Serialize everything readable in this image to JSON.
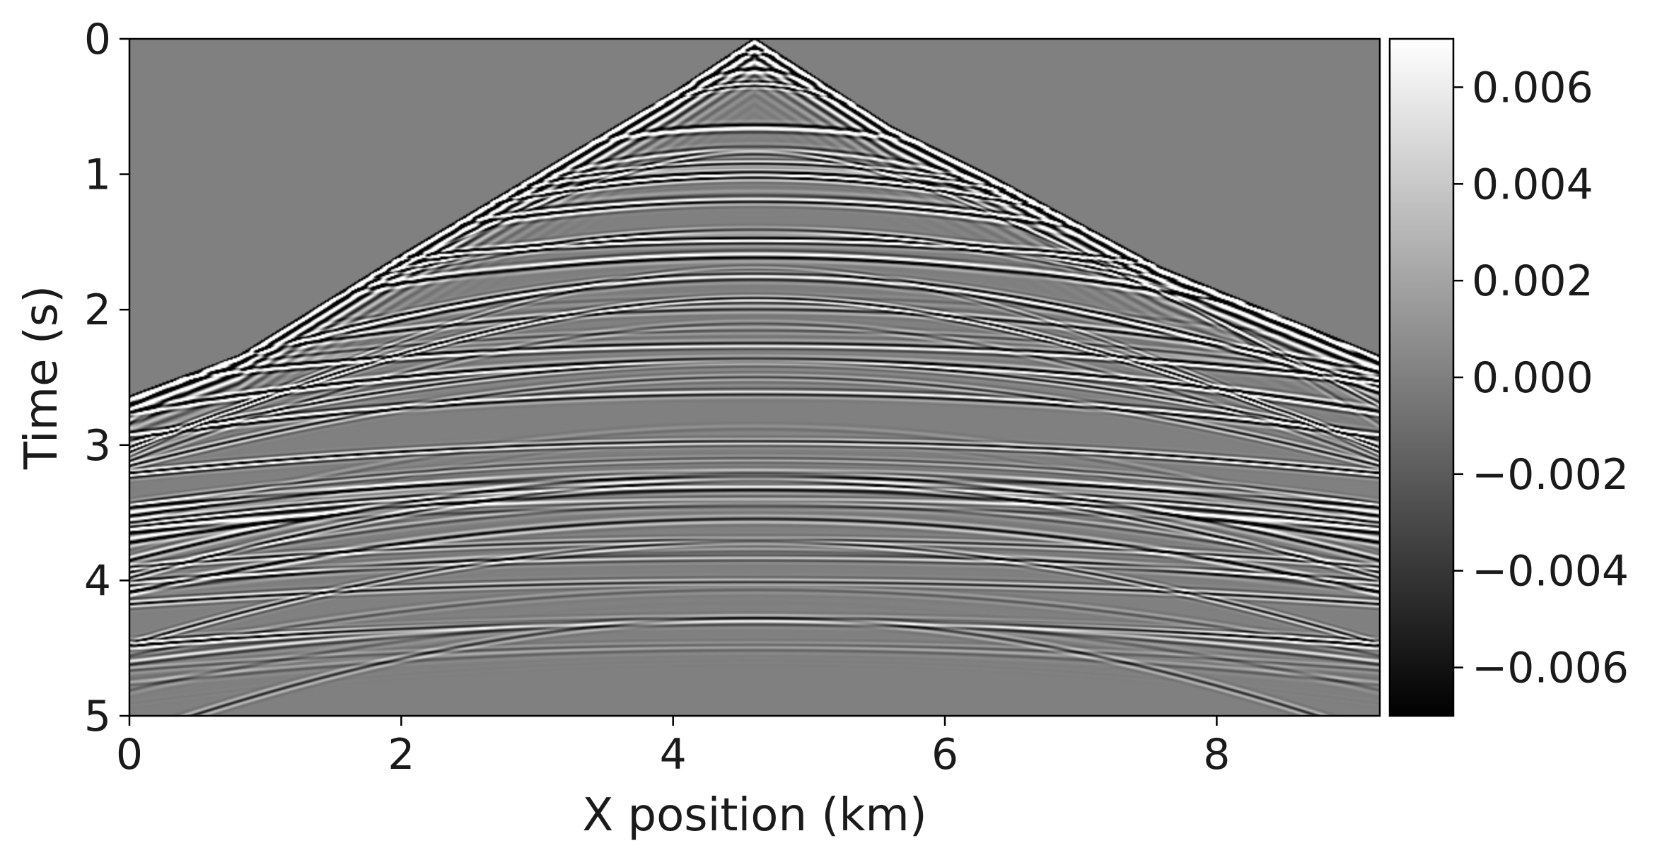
{
  "chart_data": {
    "type": "heatmap",
    "title": "",
    "xlabel": "X position (km)",
    "ylabel": "Time (s)",
    "xlim": [
      0,
      9.2
    ],
    "ylim": [
      5,
      0
    ],
    "x_ticks": [
      0,
      2,
      4,
      6,
      8
    ],
    "x_tick_labels": [
      "0",
      "2",
      "4",
      "6",
      "8"
    ],
    "y_ticks": [
      0,
      1,
      2,
      3,
      4,
      5
    ],
    "y_tick_labels": [
      "0",
      "1",
      "2",
      "3",
      "4",
      "5"
    ],
    "colormap": "gray",
    "color_range": [
      -0.007,
      0.007
    ],
    "colorbar_ticks": [
      0.006,
      0.004,
      0.002,
      0.0,
      -0.002,
      -0.004,
      -0.006
    ],
    "colorbar_tick_labels": [
      "0.006",
      "0.004",
      "0.002",
      "0.000",
      "−0.002",
      "−0.004",
      "−0.006"
    ],
    "colorbar_position": "right",
    "grid": false,
    "source_x_km": 4.6,
    "first_arrival_time_s": [
      {
        "x": 0.0,
        "t": 2.65
      },
      {
        "x": 0.8,
        "t": 2.35
      },
      {
        "x": 2.0,
        "t": 1.6
      },
      {
        "x": 4.0,
        "t": 0.4
      },
      {
        "x": 4.6,
        "t": 0.0
      },
      {
        "x": 5.6,
        "t": 0.65
      },
      {
        "x": 6.4,
        "t": 1.05
      },
      {
        "x": 7.6,
        "t": 1.7
      },
      {
        "x": 9.2,
        "t": 2.35
      }
    ]
  },
  "colors": {
    "background": "#808080",
    "axis": "#000000",
    "text": "#1a1a1a"
  }
}
